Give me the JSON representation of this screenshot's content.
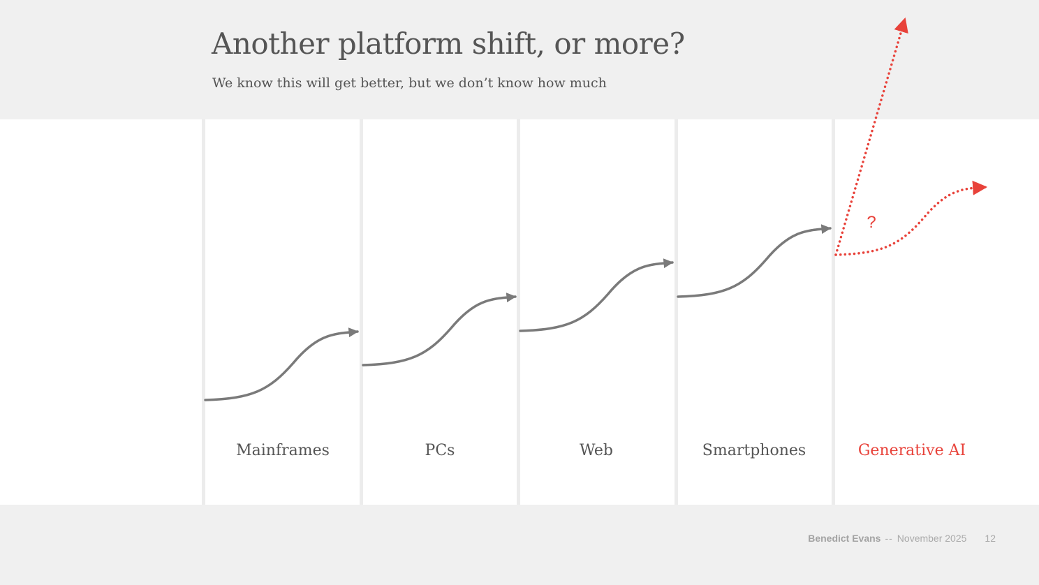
{
  "header": {
    "title": "Another platform shift, or more?",
    "subtitle": "We know this will get better, but we don’t know how much"
  },
  "diagram": {
    "eras": [
      {
        "label": "Mainframes",
        "highlight": false
      },
      {
        "label": "PCs",
        "highlight": false
      },
      {
        "label": "Web",
        "highlight": false
      },
      {
        "label": "Smartphones",
        "highlight": false
      },
      {
        "label": "Generative AI",
        "highlight": true
      }
    ],
    "question_mark": "?",
    "colors": {
      "curve": "#7a7a7a",
      "highlight": "#e8423a",
      "label": "#555555",
      "divider": "#ececec"
    }
  },
  "footer": {
    "author": "Benedict Evans",
    "separator": "--",
    "date": "November 2025",
    "page_number": "12"
  }
}
